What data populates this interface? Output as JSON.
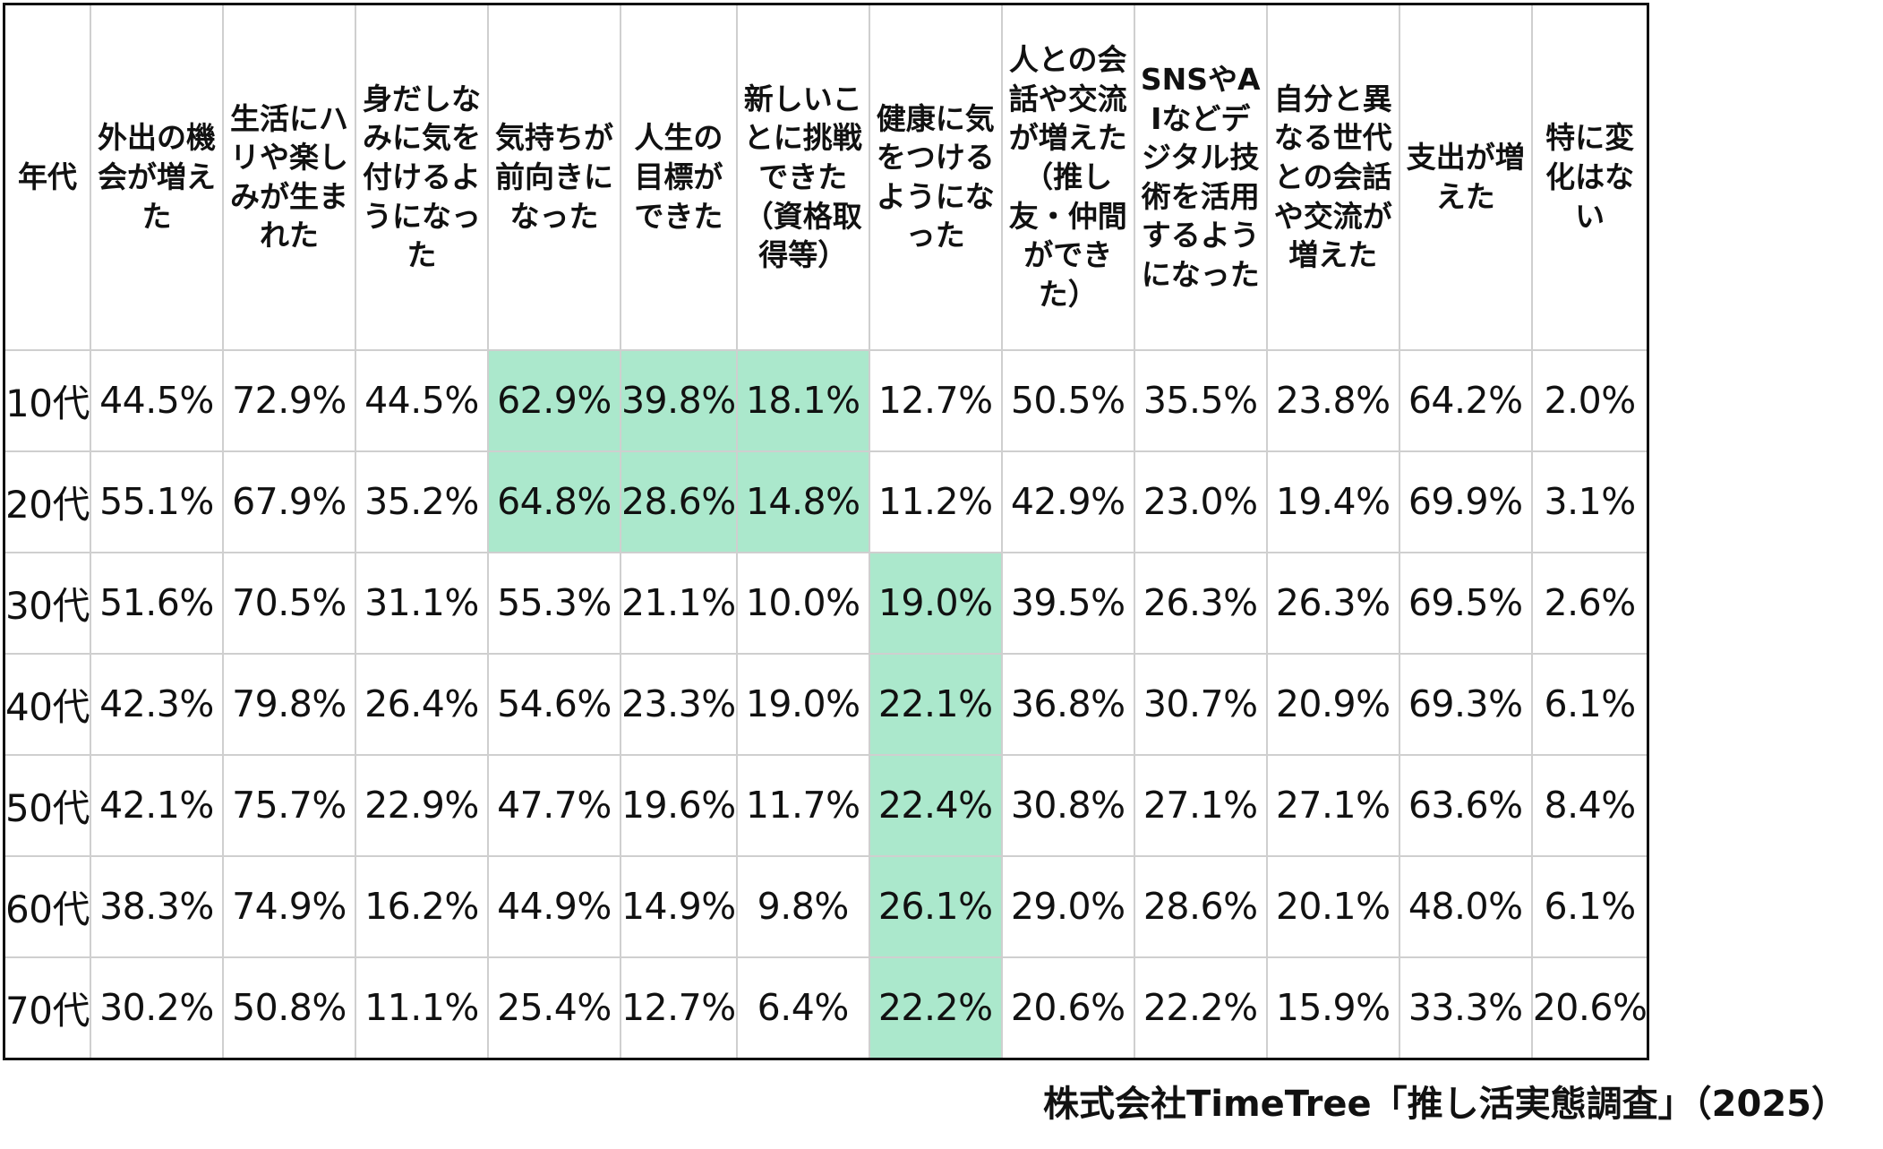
{
  "chart_data": {
    "type": "table",
    "row_header_label": "年代",
    "columns": [
      "外出の機会が増えた",
      "生活にハリや楽しみが生まれた",
      "身だしなみに気を付けるようになった",
      "気持ちが前向きになった",
      "人生の目標ができた",
      "新しいことに挑戦できた（資格取得等）",
      "健康に気をつけるようになった",
      "人との会話や交流が増えた（推し友・仲間ができた）",
      "SNSやAIなどデジタル技術を活用するようになった",
      "自分と異なる世代との会話や交流が増えた",
      "支出が増えた",
      "特に変化はない"
    ],
    "column_wrap_chars": [
      4,
      4,
      4,
      4,
      3,
      4,
      4,
      4,
      4,
      4,
      4,
      3
    ],
    "rows": [
      {
        "age": "10代",
        "values": [
          "44.5%",
          "72.9%",
          "44.5%",
          "62.9%",
          "39.8%",
          "18.1%",
          "12.7%",
          "50.5%",
          "35.5%",
          "23.8%",
          "64.2%",
          "2.0%"
        ],
        "highlight": [
          3,
          4,
          5
        ]
      },
      {
        "age": "20代",
        "values": [
          "55.1%",
          "67.9%",
          "35.2%",
          "64.8%",
          "28.6%",
          "14.8%",
          "11.2%",
          "42.9%",
          "23.0%",
          "19.4%",
          "69.9%",
          "3.1%"
        ],
        "highlight": [
          3,
          4,
          5
        ]
      },
      {
        "age": "30代",
        "values": [
          "51.6%",
          "70.5%",
          "31.1%",
          "55.3%",
          "21.1%",
          "10.0%",
          "19.0%",
          "39.5%",
          "26.3%",
          "26.3%",
          "69.5%",
          "2.6%"
        ],
        "highlight": [
          6
        ]
      },
      {
        "age": "40代",
        "values": [
          "42.3%",
          "79.8%",
          "26.4%",
          "54.6%",
          "23.3%",
          "19.0%",
          "22.1%",
          "36.8%",
          "30.7%",
          "20.9%",
          "69.3%",
          "6.1%"
        ],
        "highlight": [
          6
        ]
      },
      {
        "age": "50代",
        "values": [
          "42.1%",
          "75.7%",
          "22.9%",
          "47.7%",
          "19.6%",
          "11.7%",
          "22.4%",
          "30.8%",
          "27.1%",
          "27.1%",
          "63.6%",
          "8.4%"
        ],
        "highlight": [
          6
        ]
      },
      {
        "age": "60代",
        "values": [
          "38.3%",
          "74.9%",
          "16.2%",
          "44.9%",
          "14.9%",
          "9.8%",
          "26.1%",
          "29.0%",
          "28.6%",
          "20.1%",
          "48.0%",
          "6.1%"
        ],
        "highlight": [
          6
        ]
      },
      {
        "age": "70代",
        "values": [
          "30.2%",
          "50.8%",
          "11.1%",
          "25.4%",
          "12.7%",
          "6.4%",
          "22.2%",
          "20.6%",
          "22.2%",
          "15.9%",
          "33.3%",
          "20.6%"
        ],
        "highlight": [
          6
        ]
      }
    ],
    "highlight_color": "#abe8cc",
    "border_color": "#cfcfcf",
    "outer_border_color": "#111111"
  },
  "source": "株式会社TimeTree「推し活実態調査」（2025）"
}
